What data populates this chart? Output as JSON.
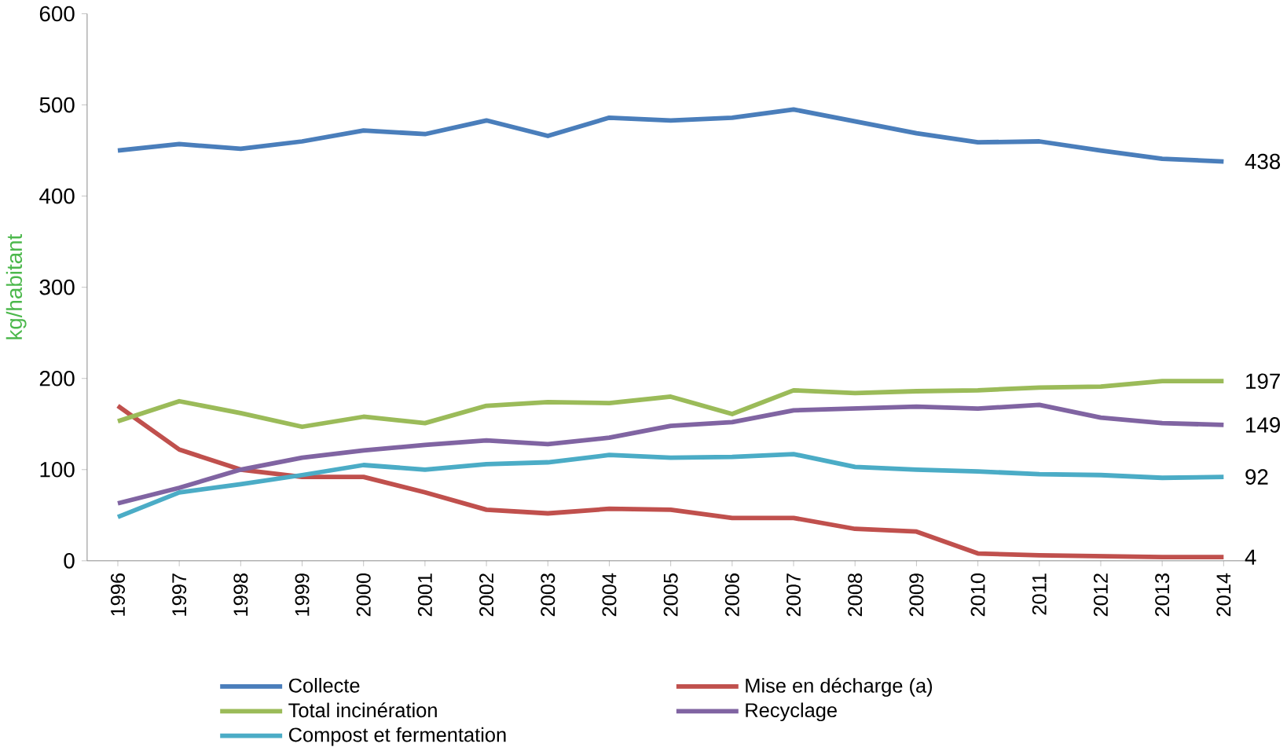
{
  "chart_data": {
    "type": "line",
    "ylabel": "kg/habitant",
    "categories": [
      "1996",
      "1997",
      "1998",
      "1999",
      "2000",
      "2001",
      "2002",
      "2003",
      "2004",
      "2005",
      "2006",
      "2007",
      "2008",
      "2009",
      "2010",
      "2011",
      "2012",
      "2013",
      "2014"
    ],
    "series": [
      {
        "name": "Collecte",
        "color": "#4a7ebb",
        "values": [
          450,
          457,
          452,
          460,
          472,
          468,
          483,
          466,
          486,
          483,
          486,
          495,
          482,
          469,
          459,
          460,
          450,
          441,
          438
        ],
        "value_labels": [
          null,
          null,
          null,
          null,
          null,
          null,
          null,
          null,
          null,
          null,
          null,
          null,
          null,
          null,
          null,
          null,
          null,
          null,
          "438"
        ]
      },
      {
        "name": "Mise en décharge (a)",
        "color": "#c0504d",
        "values": [
          170,
          122,
          100,
          92,
          92,
          75,
          56,
          52,
          57,
          56,
          47,
          47,
          35,
          32,
          8,
          6,
          5,
          4,
          4
        ],
        "value_labels": [
          null,
          null,
          null,
          null,
          null,
          null,
          null,
          null,
          null,
          null,
          null,
          null,
          null,
          null,
          null,
          null,
          null,
          null,
          "4"
        ]
      },
      {
        "name": "Total incinération",
        "color": "#9bbb59",
        "values": [
          153,
          175,
          162,
          147,
          158,
          151,
          170,
          174,
          173,
          180,
          161,
          187,
          184,
          186,
          187,
          190,
          191,
          197,
          197
        ],
        "value_labels": [
          null,
          null,
          null,
          null,
          null,
          null,
          null,
          null,
          null,
          null,
          null,
          null,
          null,
          null,
          null,
          null,
          null,
          null,
          "197"
        ]
      },
      {
        "name": "Recyclage",
        "color": "#8064a2",
        "values": [
          63,
          80,
          100,
          113,
          121,
          127,
          132,
          128,
          135,
          148,
          152,
          165,
          167,
          169,
          167,
          171,
          157,
          151,
          149
        ],
        "value_labels": [
          null,
          null,
          null,
          null,
          null,
          null,
          null,
          null,
          null,
          null,
          null,
          null,
          null,
          null,
          null,
          null,
          null,
          null,
          "149"
        ]
      },
      {
        "name": "Compost et fermentation",
        "color": "#4bacc6",
        "values": [
          48,
          75,
          84,
          94,
          105,
          100,
          106,
          108,
          116,
          113,
          114,
          117,
          103,
          100,
          98,
          95,
          94,
          91,
          92
        ],
        "value_labels": [
          null,
          null,
          null,
          null,
          null,
          null,
          null,
          null,
          null,
          null,
          null,
          null,
          null,
          null,
          null,
          null,
          null,
          null,
          "92"
        ]
      }
    ],
    "ylim": [
      0,
      600
    ],
    "yticks": [
      0,
      100,
      200,
      300,
      400,
      500,
      600
    ],
    "grid": false,
    "legend": "bottom",
    "marker": "none",
    "line_style": "solid"
  }
}
